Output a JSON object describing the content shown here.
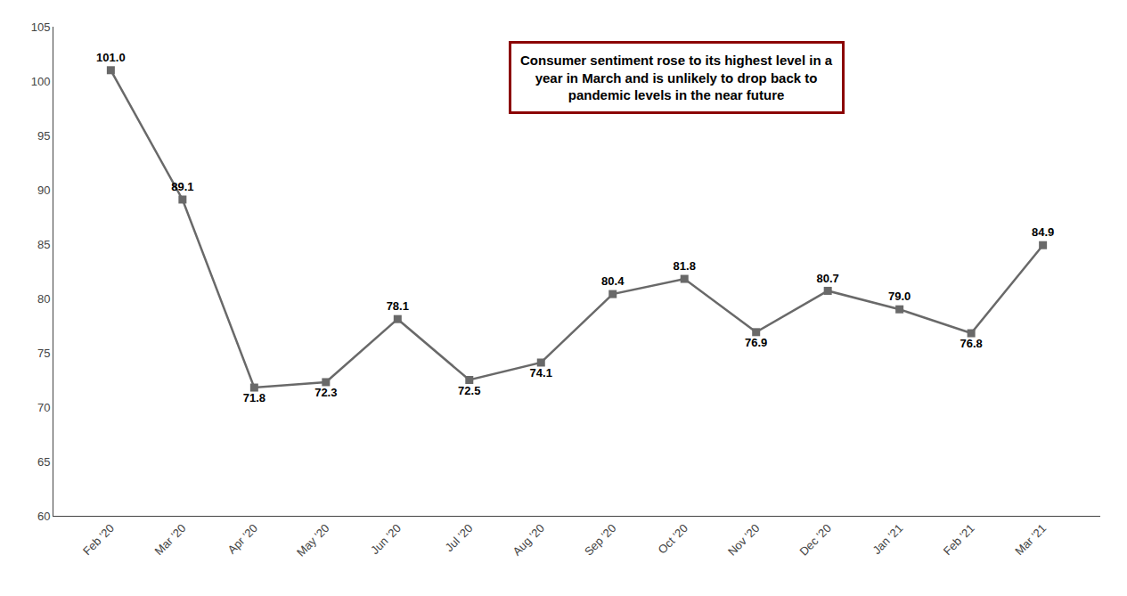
{
  "chart_data": {
    "type": "line",
    "categories": [
      "Feb '20",
      "Mar '20",
      "Apr '20",
      "May '20",
      "Jun '20",
      "Jul '20",
      "Aug '20",
      "Sep '20",
      "Oct '20",
      "Nov '20",
      "Dec '20",
      "Jan '21",
      "Feb '21",
      "Mar '21"
    ],
    "values": [
      101.0,
      89.1,
      71.8,
      72.3,
      78.1,
      72.5,
      74.1,
      80.4,
      81.8,
      76.9,
      80.7,
      79.0,
      76.8,
      84.9
    ],
    "value_labels": [
      "101.0",
      "89.1",
      "71.8",
      "72.3",
      "78.1",
      "72.5",
      "74.1",
      "80.4",
      "81.8",
      "76.9",
      "80.7",
      "79.0",
      "76.8",
      "84.9"
    ],
    "color": "#696969",
    "marker": "square",
    "data_labels": true,
    "ylim": [
      60,
      105
    ],
    "yticks": [
      60,
      65,
      70,
      75,
      80,
      85,
      90,
      95,
      100,
      105
    ],
    "grid": false,
    "annotation": "Consumer sentiment rose to its highest level in a\nyear in March and is unlikely to drop back to\npandemic levels in the near future"
  }
}
